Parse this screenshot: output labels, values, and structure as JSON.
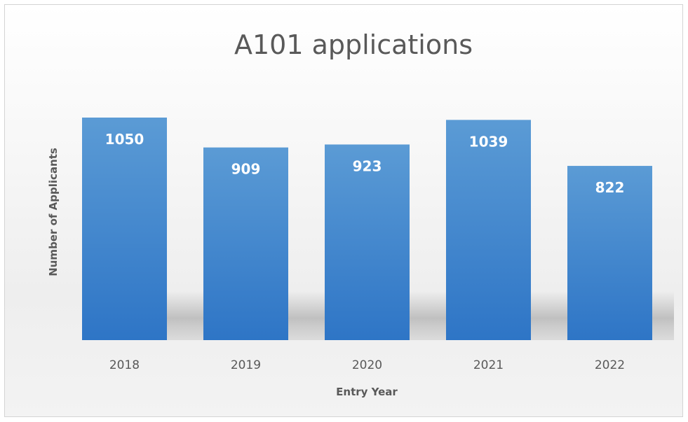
{
  "chart_data": {
    "type": "bar",
    "title": "A101 applications",
    "xlabel": "Entry Year",
    "ylabel": "Number of Applicants",
    "categories": [
      "2018",
      "2019",
      "2020",
      "2021",
      "2022"
    ],
    "values": [
      1050,
      909,
      923,
      1039,
      822
    ],
    "data_labels": [
      "1050",
      "909",
      "923",
      "1039",
      "822"
    ],
    "ylim": [
      0,
      1050
    ],
    "grid": false,
    "legend": "none",
    "colors": {
      "bar_top": "#5b9bd5",
      "bar_bottom": "#2e75c6",
      "text": "#595959",
      "data_label": "#ffffff"
    }
  }
}
